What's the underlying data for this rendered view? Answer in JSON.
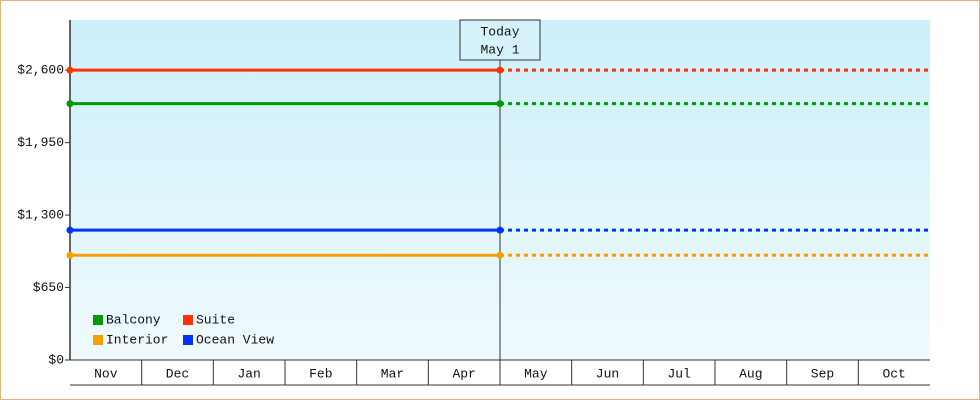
{
  "chart_data": {
    "type": "line",
    "categories": [
      "Nov",
      "Dec",
      "Jan",
      "Feb",
      "Mar",
      "Apr",
      "May",
      "Jun",
      "Jul",
      "Aug",
      "Sep",
      "Oct"
    ],
    "series": [
      {
        "name": "Balcony",
        "color": "#009a00",
        "value": 2300
      },
      {
        "name": "Suite",
        "color": "#ff3300",
        "value": 2600
      },
      {
        "name": "Interior",
        "color": "#f5a000",
        "value": 940
      },
      {
        "name": "Ocean View",
        "color": "#0033ff",
        "value": 1165
      }
    ],
    "ylim": [
      0,
      3050
    ],
    "yticks": [
      {
        "value": 0,
        "label": "$0"
      },
      {
        "value": 650,
        "label": "$650"
      },
      {
        "value": 1300,
        "label": "$1,300"
      },
      {
        "value": 1950,
        "label": "$1,950"
      },
      {
        "value": 2600,
        "label": "$2,600"
      }
    ],
    "annotation": {
      "text": [
        "Today",
        "May 1"
      ],
      "category": "May"
    },
    "legend": "lower-left"
  }
}
